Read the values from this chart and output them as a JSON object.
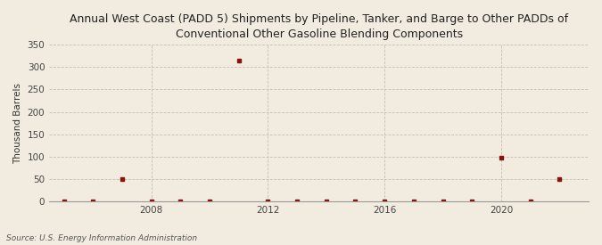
{
  "title": "Annual West Coast (PADD 5) Shipments by Pipeline, Tanker, and Barge to Other PADDs of\nConventional Other Gasoline Blending Components",
  "ylabel": "Thousand Barrels",
  "source": "Source: U.S. Energy Information Administration",
  "background_color": "#f2ece0",
  "plot_bg_color": "#f2ece0",
  "marker_color": "#8B1010",
  "years": [
    2005,
    2006,
    2007,
    2008,
    2009,
    2010,
    2011,
    2012,
    2013,
    2014,
    2015,
    2016,
    2017,
    2018,
    2019,
    2020,
    2021,
    2022
  ],
  "values": [
    0,
    0,
    50,
    0,
    0,
    0,
    315,
    0,
    0,
    0,
    0,
    0,
    0,
    0,
    0,
    98,
    0,
    50
  ],
  "ylim": [
    0,
    350
  ],
  "yticks": [
    0,
    50,
    100,
    150,
    200,
    250,
    300,
    350
  ],
  "xlim": [
    2004.5,
    2023.0
  ],
  "xticks": [
    2008,
    2012,
    2016,
    2020
  ],
  "grid_color": "#c8bfaa",
  "title_fontsize": 9,
  "label_fontsize": 7.5,
  "tick_fontsize": 7.5,
  "source_fontsize": 6.5
}
